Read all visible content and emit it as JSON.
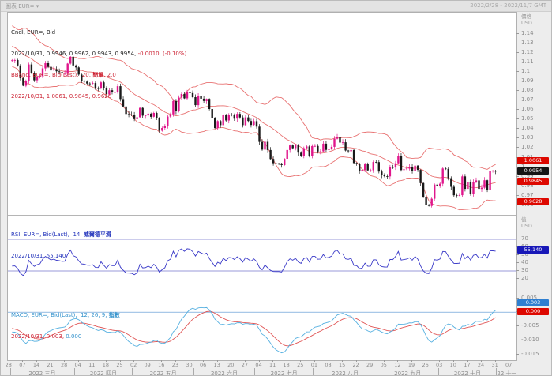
{
  "window": {
    "title_left": "圖表 EUR= ▾",
    "title_right": "2022/2/28 - 2022/11/7 GMT"
  },
  "main_legend": {
    "line1": "Cndl, EUR=, Bid",
    "line2_black": "2022/10/31, 0.9946, 0.9962, 0.9943, 0.9954, ",
    "line2_red": "-0.0010, (-0.10%)",
    "line3_a": "BBand, EUR=, Bid(Last),  20, ",
    "line3_b": "簡單",
    "line3_c": ", 2.0",
    "line4": "2022/10/31, 1.0061, 0.9845, 0.9628"
  },
  "rsi_legend": {
    "line1_a": "RSI, EUR=, Bid(Last),  14, ",
    "line1_b": "威爾德平滑",
    "line2": "2022/10/31, 55.140"
  },
  "macd_legend": {
    "line1_a": "MACD, EUR=, Bid(Last),  12, 26, 9, ",
    "line1_b": "指數",
    "line2_red": "2022/10/31, 0.003, ",
    "line2_blue": "0.000"
  },
  "axes": {
    "main_unit_1": "價格",
    "main_unit_2": "USD",
    "rsi_unit_1": "值",
    "rsi_unit_2": "USD",
    "main_ticks": [
      1.14,
      1.13,
      1.12,
      1.11,
      1.1,
      1.09,
      1.08,
      1.07,
      1.06,
      1.05,
      1.04,
      1.03,
      1.02,
      1.01,
      1.0,
      0.99,
      0.98,
      0.97,
      0.96
    ],
    "rsi_ticks": [
      70,
      60,
      50,
      40,
      30,
      20
    ],
    "macd_ticks": [
      0.005,
      0,
      -0.005,
      -0.01,
      -0.015
    ]
  },
  "axis_badges": [
    {
      "name": "bb-upper-badge",
      "pane": "main",
      "value": 1.0061,
      "text": "1.0061",
      "bg": "#dd0800"
    },
    {
      "name": "last-price-badge",
      "pane": "main",
      "value": 0.9954,
      "text": "0.9954",
      "bg": "#141414"
    },
    {
      "name": "bb-mid-badge",
      "pane": "main",
      "value": 0.9845,
      "text": "0.9845",
      "bg": "#dd0800"
    },
    {
      "name": "bb-lower-badge",
      "pane": "main",
      "value": 0.9628,
      "text": "0.9628",
      "bg": "#dd0800"
    },
    {
      "name": "rsi-badge",
      "pane": "rsi",
      "value": 55.14,
      "text": "55.140",
      "bg": "#1818b8"
    },
    {
      "name": "macd-badge",
      "pane": "macd",
      "value": 0.003,
      "text": "0.003",
      "bg": "#2f7fd0"
    },
    {
      "name": "macd-signal-badge",
      "pane": "macd",
      "value": 0.0,
      "text": "0.000",
      "bg": "#dd0800"
    }
  ],
  "date_axis": {
    "total_slots": 183,
    "weekly": [
      "28",
      "07",
      "14",
      "21",
      "28",
      "04",
      "11",
      "18",
      "25",
      "02",
      "09",
      "16",
      "23",
      "30",
      "06",
      "13",
      "20",
      "27",
      "04",
      "11",
      "18",
      "25",
      "01",
      "08",
      "15",
      "22",
      "29",
      "05",
      "12",
      "19",
      "26",
      "03",
      "10",
      "17",
      "24",
      "31",
      "07"
    ],
    "months": [
      {
        "label": "",
        "days": 1
      },
      {
        "label": "2022 三月",
        "days": 23
      },
      {
        "label": "2022 四月",
        "days": 21
      },
      {
        "label": "2022 五月",
        "days": 22
      },
      {
        "label": "2022 六月",
        "days": 22
      },
      {
        "label": "2022 七月",
        "days": 21
      },
      {
        "label": "2022 八月",
        "days": 23
      },
      {
        "label": "2022 九月",
        "days": 22
      },
      {
        "label": "2022 十月",
        "days": 21
      },
      {
        "label": "22 十一月",
        "days": 7
      }
    ]
  },
  "colors": {
    "candle_up": "#e0168c",
    "candle_down": "#1a1a1a",
    "band": "#e87272",
    "rsi_line": "#3a3ac8",
    "rsi_ref": "#9898d8",
    "macd_line": "#56b0e0",
    "macd_signal": "#e05555",
    "macd_zero": "#a8c8e8",
    "divider": "#b5b5b5"
  },
  "chart_data": {
    "type": "candlestick",
    "title": "Cndl, EUR=, Bid  (EUR/USD daily, 2022/3/1 - 2022/10/31)",
    "ylabel": "價格 USD",
    "ylim": [
      0.95,
      1.162
    ],
    "macd_ylim": [
      -0.017,
      0.006
    ],
    "legend_position": "top-left",
    "grid": false,
    "overlays": [
      {
        "name": "BBand 20 簡單 2.0",
        "latest_upper": 1.0061,
        "latest_mid": 0.9845,
        "latest_lower": 0.9628
      }
    ],
    "panes": [
      {
        "type": "line",
        "name": "RSI 14 威爾德平滑",
        "latest": 55.14,
        "ylim": [
          0,
          100
        ],
        "ref_lines": [
          70,
          30
        ]
      },
      {
        "type": "line",
        "name": "MACD 12, 26, 9, 指數",
        "latest_macd": 0.003,
        "latest_signal": 0.0,
        "ref_lines": [
          0
        ]
      }
    ],
    "last_candle": {
      "date": "2022/10/31",
      "open": 0.9946,
      "high": 0.9962,
      "low": 0.9943,
      "close": 0.9954,
      "change": -0.001,
      "change_pct": "-0.10%"
    },
    "pre_closes": [
      1.1449,
      1.1417,
      1.127,
      1.1254,
      1.1323,
      1.132,
      1.1413,
      1.1422,
      1.1435,
      1.1416,
      1.1344,
      1.1307,
      1.1362,
      1.1309,
      1.1365,
      1.1385,
      1.1306,
      1.1238,
      1.1222,
      1.1125,
      1.1217,
      1.119,
      1.1156,
      1.1221,
      1.1122,
      1.1121
    ],
    "closes": [
      1.1121,
      1.1123,
      1.1067,
      1.0932,
      1.0854,
      1.0902,
      1.1077,
      1.0985,
      1.0911,
      1.0941,
      1.0954,
      1.1036,
      1.109,
      1.1052,
      1.1015,
      1.1026,
      1.1005,
      1.0997,
      1.0983,
      1.0985,
      1.1086,
      1.1158,
      1.1067,
      1.1046,
      1.0971,
      1.0905,
      1.0897,
      1.0877,
      1.0876,
      1.0882,
      1.0828,
      1.0826,
      1.089,
      1.0827,
      1.0765,
      1.0807,
      1.0786,
      1.0786,
      1.0849,
      1.0714,
      1.0636,
      1.0557,
      1.0551,
      1.0545,
      1.0504,
      1.0523,
      1.0621,
      1.054,
      1.0543,
      1.0561,
      1.0528,
      1.0568,
      1.0511,
      1.0382,
      1.0411,
      1.0435,
      1.053,
      1.0553,
      1.0694,
      1.0588,
      1.073,
      1.0768,
      1.0722,
      1.0784,
      1.0777,
      1.0734,
      1.065,
      1.0746,
      1.0718,
      1.0694,
      1.0716,
      1.061,
      1.0518,
      1.041,
      1.0483,
      1.0441,
      1.0546,
      1.049,
      1.0552,
      1.0546,
      1.0508,
      1.0558,
      1.0521,
      1.0441,
      1.0522,
      1.0484,
      1.0443,
      1.0482,
      1.0425,
      1.0265,
      1.0184,
      1.0266,
      1.018,
      1.0086,
      1.0041,
      1.004,
      1.0039,
      1.0022,
      1.0088,
      1.018,
      1.0228,
      1.0199,
      1.023,
      1.0152,
      1.0119,
      1.0199,
      1.0217,
      1.012,
      1.0221,
      1.0222,
      1.0164,
      1.0166,
      1.0246,
      1.0181,
      1.0191,
      1.0213,
      1.0297,
      1.0317,
      1.0257,
      1.0261,
      1.0175,
      1.0167,
      1.018,
      1.0043,
      1.0037,
      0.9964,
      0.9972,
      1.0034,
      0.9966,
      0.9968,
      1.0054,
      1.0053,
      0.9954,
      0.9915,
      0.9905,
      0.9903,
      1.0,
      0.9996,
      1.0041,
      1.0119,
      0.997,
      0.9978,
      0.9985,
      1.0004,
      0.9963,
      1.0016,
      0.9971,
      0.9833,
      0.969,
      0.9605,
      0.9594,
      0.9669,
      0.9817,
      0.9803,
      0.9826,
      0.9986,
      0.9982,
      0.9884,
      0.9794,
      0.9705,
      0.9702,
      0.9706,
      0.9903,
      0.9772,
      0.9841,
      0.9721,
      0.9844,
      0.9861,
      0.9772,
      0.9785,
      0.9863,
      0.9764,
      0.996,
      0.9963,
      0.9954
    ]
  }
}
